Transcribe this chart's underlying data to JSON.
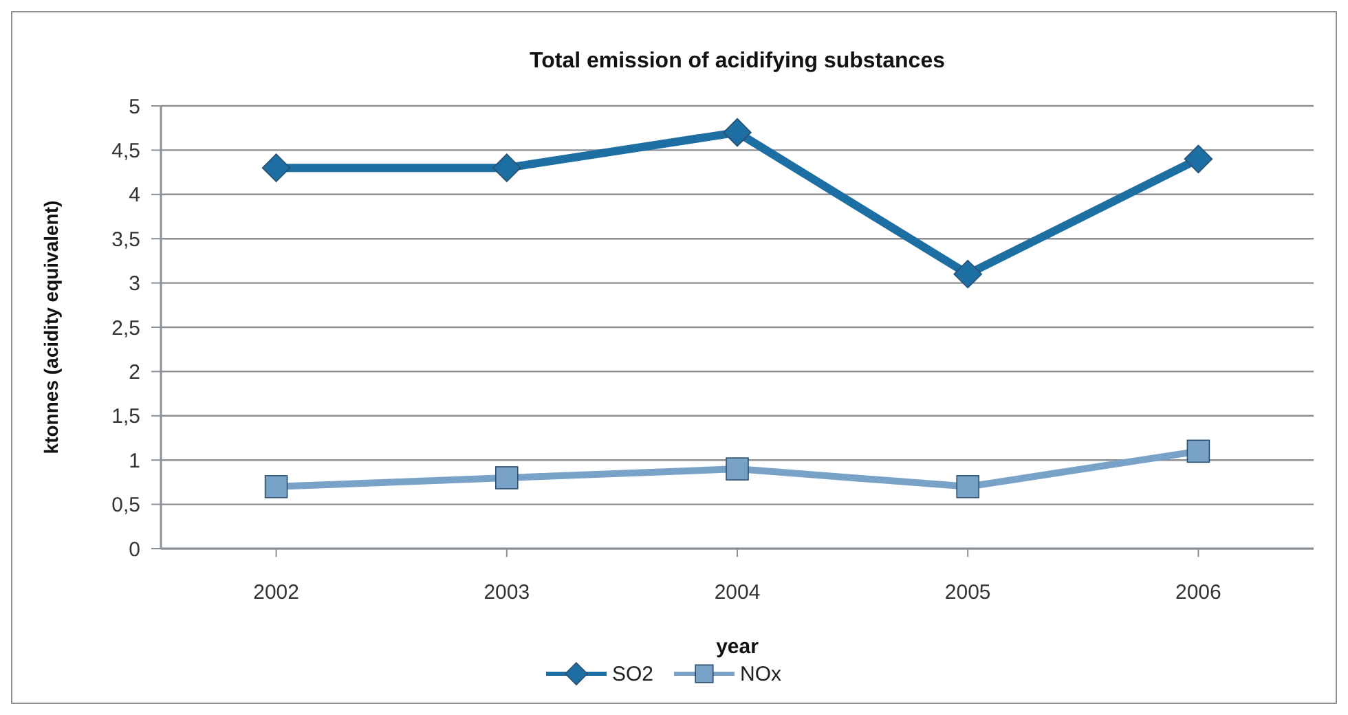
{
  "chart_data": {
    "type": "line",
    "title": "Total emission of acidifying substances",
    "xlabel": "year",
    "ylabel": "ktonnes (acidity equivalent)",
    "categories": [
      "2002",
      "2003",
      "2004",
      "2005",
      "2006"
    ],
    "series": [
      {
        "name": "SO2",
        "color": "#1d6ea3",
        "marker": "diamond",
        "values": [
          4.3,
          4.3,
          4.7,
          3.1,
          4.4
        ]
      },
      {
        "name": "NOx",
        "color": "#79a2c8",
        "marker": "square",
        "values": [
          0.7,
          0.8,
          0.9,
          0.7,
          1.1
        ]
      }
    ],
    "ylim": [
      0,
      5
    ],
    "yticks": [
      0,
      {
        "value": 0.5,
        "label": "0,5"
      },
      1,
      {
        "value": 1.5,
        "label": "1,5"
      },
      2,
      {
        "value": 2.5,
        "label": "2,5"
      },
      3,
      {
        "value": 3.5,
        "label": "3,5"
      },
      4,
      {
        "value": 4.5,
        "label": "4,5"
      },
      5
    ],
    "grid": "y",
    "legend": "bottom"
  }
}
